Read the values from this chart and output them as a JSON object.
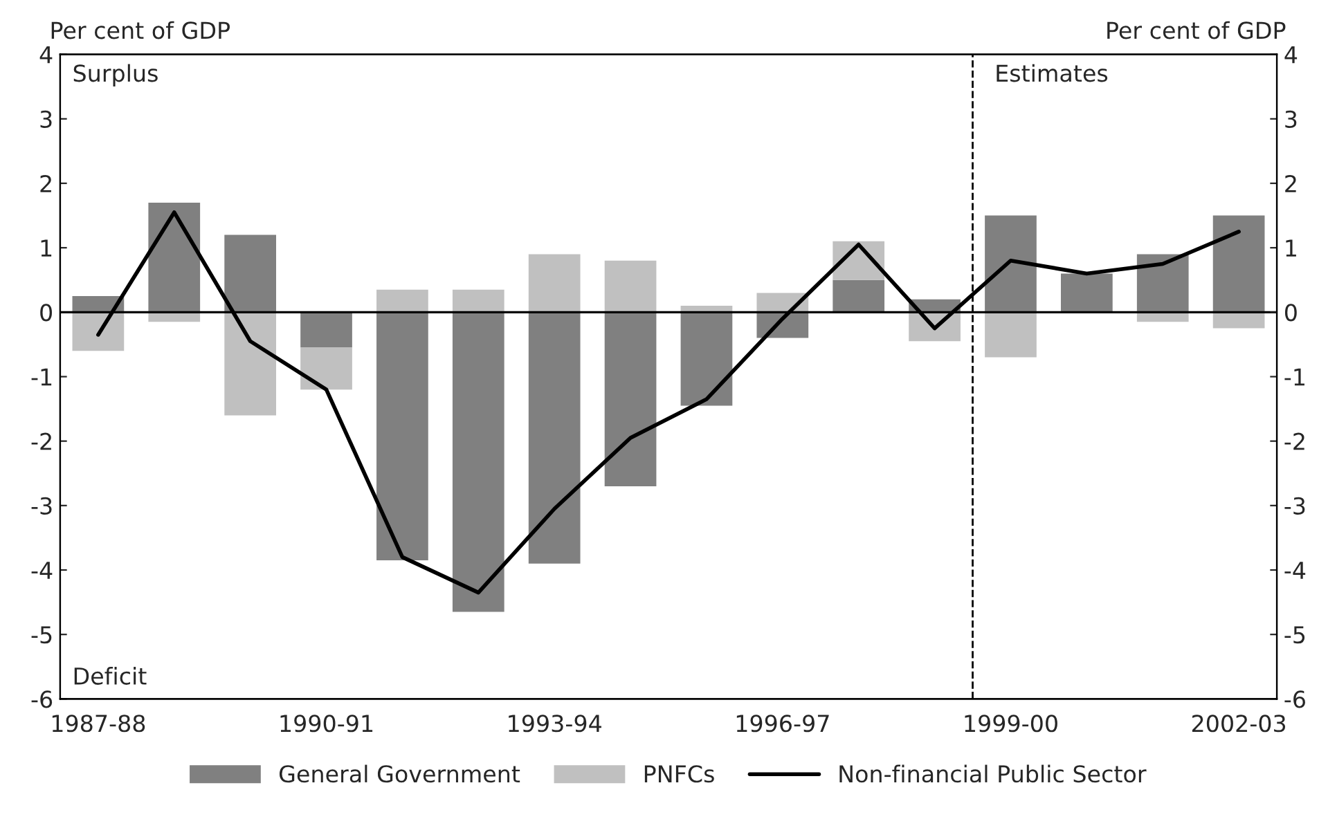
{
  "chart_data": {
    "type": "bar",
    "stacked": true,
    "ylabel": "Per cent of GDP",
    "y2label": "Per cent of GDP",
    "categories": [
      "1987-88",
      null,
      null,
      "1990-91",
      null,
      null,
      "1993-94",
      null,
      null,
      "1996-97",
      null,
      null,
      "1999-00",
      null,
      null,
      "2002-03"
    ],
    "series": [
      {
        "name": "General Government",
        "color": "#808080",
        "values": [
          0.25,
          1.7,
          1.2,
          -0.55,
          -3.85,
          -4.65,
          -3.9,
          -2.7,
          -1.45,
          -0.4,
          0.5,
          0.2,
          1.5,
          0.6,
          0.9,
          1.5
        ]
      },
      {
        "name": "PNFCs",
        "color": "#c0c0c0",
        "values": [
          -0.6,
          -0.15,
          -1.6,
          -0.65,
          0.35,
          0.35,
          0.9,
          0.8,
          0.1,
          0.3,
          0.6,
          -0.45,
          -0.7,
          0.0,
          -0.15,
          -0.25
        ]
      },
      {
        "name": "Non-financial Public Sector",
        "type": "line",
        "color": "#000000",
        "values": [
          -0.35,
          1.55,
          -0.45,
          -1.2,
          -3.8,
          -4.35,
          -3.05,
          -1.95,
          -1.35,
          -0.1,
          1.05,
          -0.25,
          0.8,
          0.6,
          0.75,
          1.25
        ]
      }
    ],
    "ylim": [
      -6,
      4
    ],
    "yticks": [
      -6,
      -5,
      -4,
      -3,
      -2,
      -1,
      0,
      1,
      2,
      3,
      4
    ],
    "y2lim": [
      -6,
      4
    ],
    "y2ticks": [
      -6,
      -5,
      -4,
      -3,
      -2,
      -1,
      0,
      1,
      2,
      3,
      4
    ],
    "ref_lines": [
      {
        "axis": "y",
        "value": 0,
        "color": "#000000",
        "line_style": "solid"
      }
    ],
    "annotations": [
      "Surplus",
      "Deficit",
      "Estimates"
    ],
    "grid": false,
    "legend": "bottom"
  }
}
